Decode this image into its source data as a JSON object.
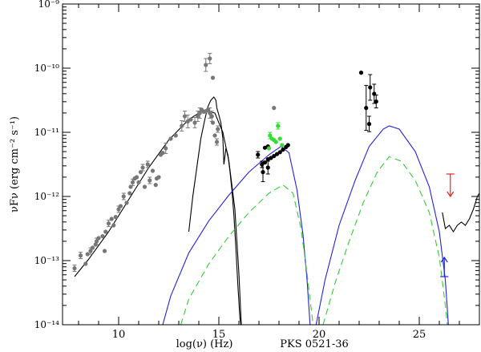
{
  "chart_data": {
    "type": "scatter",
    "title": "PKS 0521-36",
    "xlabel": "log(ν)  (Hz)",
    "ylabel": "νFν (erg cm⁻² s⁻¹)",
    "xlim": [
      7.2,
      28
    ],
    "ylim_log10": [
      -14,
      -9
    ],
    "xscale": "linear",
    "yscale": "log",
    "x_ticks": [
      10,
      15,
      20,
      25
    ],
    "x_tick_labels": [
      "10",
      "15",
      "20",
      "25"
    ],
    "y_ticks_log10": [
      -14,
      -13,
      -12,
      -11,
      -10,
      -9
    ],
    "y_tick_labels": [
      "10⁻¹⁴",
      "10⁻¹³",
      "10⁻¹²",
      "10⁻¹¹",
      "10⁻¹⁰",
      "10⁻⁹"
    ],
    "grid": false,
    "legend": "none",
    "colors": {
      "archival": "#777777",
      "xray_green": "#33dd33",
      "model_total": "#2222dd",
      "model_component": "#33cc33",
      "upper_limit": "#ee2222",
      "black": "#000000"
    },
    "series": [
      {
        "kind": "points",
        "color": "#777777",
        "points": [
          [
            7.8,
            -13.12,
            0.05
          ],
          [
            8.1,
            -12.92,
            0.05
          ],
          [
            8.35,
            -13.05,
            0
          ],
          [
            8.45,
            -12.9,
            0
          ],
          [
            8.6,
            -12.85,
            0.05
          ],
          [
            8.7,
            -12.8,
            0
          ],
          [
            8.85,
            -12.75,
            0
          ],
          [
            8.9,
            -12.7,
            0.05
          ],
          [
            9.0,
            -12.65,
            0
          ],
          [
            9.2,
            -12.62,
            0
          ],
          [
            9.3,
            -12.85,
            0
          ],
          [
            9.35,
            -12.55,
            0
          ],
          [
            9.5,
            -12.42,
            0.05
          ],
          [
            9.65,
            -12.35,
            0
          ],
          [
            9.75,
            -12.45,
            0
          ],
          [
            9.85,
            -12.32,
            0
          ],
          [
            10.0,
            -12.2,
            0.05
          ],
          [
            10.1,
            -12.15,
            0
          ],
          [
            10.25,
            -12.0,
            0.05
          ],
          [
            10.4,
            -12.1,
            0
          ],
          [
            10.55,
            -11.95,
            0
          ],
          [
            10.6,
            -11.85,
            0
          ],
          [
            10.7,
            -11.78,
            0.05
          ],
          [
            10.8,
            -11.72,
            0
          ],
          [
            10.9,
            -11.7,
            0
          ],
          [
            11.0,
            -11.78,
            0
          ],
          [
            11.1,
            -11.62,
            0
          ],
          [
            11.2,
            -11.55,
            0.05
          ],
          [
            11.3,
            -11.85,
            0
          ],
          [
            11.45,
            -11.5,
            0.05
          ],
          [
            11.55,
            -11.75,
            0.05
          ],
          [
            11.7,
            -11.6,
            0
          ],
          [
            11.85,
            -11.82,
            0
          ],
          [
            11.9,
            -11.72,
            0
          ],
          [
            12.0,
            -11.7,
            0
          ],
          [
            12.1,
            -11.35,
            0
          ],
          [
            12.2,
            -11.32,
            0
          ],
          [
            12.35,
            -11.25,
            0.08
          ],
          [
            12.6,
            -11.1,
            0
          ],
          [
            12.85,
            -11.05,
            0
          ],
          [
            13.15,
            -10.9,
            0.08
          ],
          [
            13.3,
            -10.75,
            0.08
          ],
          [
            13.45,
            -10.83,
            0.1
          ],
          [
            13.6,
            -10.8,
            0
          ],
          [
            13.8,
            -10.85,
            0.08
          ],
          [
            13.95,
            -10.75,
            0.08
          ],
          [
            14.05,
            -10.7,
            0.08
          ],
          [
            14.15,
            -10.65,
            0
          ],
          [
            14.25,
            -10.68,
            0
          ],
          [
            14.35,
            -10.67,
            0
          ],
          [
            14.45,
            -10.65,
            0
          ],
          [
            14.55,
            -10.7,
            0.08
          ],
          [
            14.65,
            -10.75,
            0.08
          ],
          [
            14.7,
            -10.85,
            0
          ],
          [
            14.8,
            -11.05,
            0
          ],
          [
            14.9,
            -11.15,
            0.05
          ],
          [
            14.95,
            -10.95,
            0.05
          ],
          [
            14.35,
            -9.95,
            0.1
          ],
          [
            14.55,
            -9.85,
            0.08
          ],
          [
            14.7,
            -10.15,
            0
          ]
        ]
      },
      {
        "kind": "points",
        "color": "#000000",
        "points": [
          [
            16.95,
            -11.35,
            0.05
          ],
          [
            17.15,
            -11.5,
            0.05
          ],
          [
            17.3,
            -11.47,
            0
          ],
          [
            17.45,
            -11.42,
            0
          ],
          [
            17.6,
            -11.4,
            0
          ],
          [
            17.75,
            -11.37,
            0
          ],
          [
            17.9,
            -11.34,
            0
          ],
          [
            18.05,
            -11.31,
            0
          ],
          [
            18.2,
            -11.27,
            0
          ],
          [
            18.35,
            -11.23,
            0
          ],
          [
            18.45,
            -11.2,
            0
          ],
          [
            17.2,
            -11.62,
            0.15
          ],
          [
            17.45,
            -11.55,
            0.1
          ],
          [
            17.3,
            -11.24,
            0
          ],
          [
            17.45,
            -11.22,
            0
          ],
          [
            22.1,
            -10.07,
            0
          ],
          [
            22.35,
            -10.62,
            0.35
          ],
          [
            22.55,
            -10.3,
            0.2
          ],
          [
            22.75,
            -10.4,
            0.15
          ],
          [
            22.5,
            -10.87,
            0.12
          ],
          [
            22.85,
            -10.52,
            0.1
          ]
        ]
      },
      {
        "kind": "points",
        "color": "#33dd33",
        "points": [
          [
            17.55,
            -11.05,
            0.05
          ],
          [
            17.65,
            -11.1,
            0
          ],
          [
            17.75,
            -11.12,
            0
          ],
          [
            17.85,
            -11.15,
            0
          ],
          [
            17.95,
            -10.9,
            0.05
          ],
          [
            18.05,
            -11.1,
            0
          ],
          [
            18.15,
            -11.2,
            0
          ],
          [
            17.5,
            -11.25,
            0
          ]
        ]
      },
      {
        "kind": "points",
        "color": "#777777",
        "points": [
          [
            17.75,
            -10.62,
            0
          ]
        ]
      }
    ],
    "curves": [
      {
        "kind": "model_total_synchrotron",
        "color": "#000000",
        "dash": "none",
        "points": [
          [
            7.8,
            -13.25
          ],
          [
            8.5,
            -12.98
          ],
          [
            9.5,
            -12.55
          ],
          [
            10.5,
            -12.05
          ],
          [
            11.5,
            -11.55
          ],
          [
            12.5,
            -11.12
          ],
          [
            13.5,
            -10.8
          ],
          [
            14.2,
            -10.66
          ],
          [
            14.8,
            -10.7
          ],
          [
            15.2,
            -11.0
          ],
          [
            15.5,
            -11.45
          ],
          [
            15.8,
            -12.2
          ],
          [
            16.0,
            -13.2
          ],
          [
            16.12,
            -14.0
          ]
        ]
      },
      {
        "kind": "model_component_blackbody",
        "color": "#000000",
        "dash": "none",
        "points": [
          [
            13.5,
            -12.55
          ],
          [
            13.7,
            -12.0
          ],
          [
            13.9,
            -11.55
          ],
          [
            14.1,
            -11.1
          ],
          [
            14.3,
            -10.8
          ],
          [
            14.45,
            -10.6
          ],
          [
            14.6,
            -10.5
          ],
          [
            14.75,
            -10.45
          ],
          [
            14.85,
            -10.5
          ],
          [
            14.9,
            -10.62
          ],
          [
            15.0,
            -10.73
          ],
          [
            15.1,
            -10.85
          ],
          [
            15.2,
            -11.1
          ],
          [
            15.25,
            -11.5
          ],
          [
            15.35,
            -11.25
          ],
          [
            15.45,
            -11.35
          ],
          [
            15.55,
            -11.6
          ],
          [
            15.65,
            -11.9
          ],
          [
            15.75,
            -12.3
          ],
          [
            15.85,
            -12.8
          ],
          [
            15.95,
            -13.4
          ],
          [
            16.05,
            -13.9
          ],
          [
            16.1,
            -14.0
          ]
        ]
      },
      {
        "kind": "model_total_high_energy",
        "color": "#2222dd",
        "dash": "none",
        "points": [
          [
            12.2,
            -14.0
          ],
          [
            12.6,
            -13.55
          ],
          [
            13.5,
            -12.88
          ],
          [
            14.5,
            -12.38
          ],
          [
            15.5,
            -11.98
          ],
          [
            16.5,
            -11.62
          ],
          [
            17.5,
            -11.35
          ],
          [
            18.1,
            -11.22
          ],
          [
            18.5,
            -11.32
          ],
          [
            18.9,
            -11.9
          ],
          [
            19.2,
            -12.6
          ],
          [
            19.4,
            -13.3
          ],
          [
            19.55,
            -14.0
          ]
        ]
      },
      {
        "kind": "model_component_green",
        "color": "#33cc33",
        "dash": "8,5",
        "points": [
          [
            13.1,
            -14.0
          ],
          [
            13.5,
            -13.6
          ],
          [
            14.5,
            -13.05
          ],
          [
            15.5,
            -12.62
          ],
          [
            16.5,
            -12.25
          ],
          [
            17.5,
            -11.95
          ],
          [
            18.2,
            -11.82
          ],
          [
            18.7,
            -11.95
          ],
          [
            19.1,
            -12.5
          ],
          [
            19.4,
            -13.2
          ],
          [
            19.7,
            -14.0
          ]
        ]
      },
      {
        "kind": "model_total_ic",
        "color": "#2222dd",
        "dash": "none",
        "points": [
          [
            19.85,
            -14.0
          ],
          [
            20.3,
            -13.3
          ],
          [
            21.0,
            -12.45
          ],
          [
            21.8,
            -11.75
          ],
          [
            22.5,
            -11.22
          ],
          [
            23.2,
            -10.95
          ],
          [
            23.5,
            -10.9
          ],
          [
            24.0,
            -10.95
          ],
          [
            24.8,
            -11.3
          ],
          [
            25.5,
            -11.85
          ],
          [
            26.0,
            -12.55
          ],
          [
            26.3,
            -13.3
          ],
          [
            26.45,
            -14.0
          ]
        ]
      },
      {
        "kind": "model_component_green_ic",
        "color": "#33cc33",
        "dash": "8,5",
        "points": [
          [
            20.2,
            -14.0
          ],
          [
            20.8,
            -13.35
          ],
          [
            21.5,
            -12.7
          ],
          [
            22.2,
            -12.1
          ],
          [
            22.9,
            -11.62
          ],
          [
            23.5,
            -11.38
          ],
          [
            24.1,
            -11.45
          ],
          [
            24.8,
            -11.75
          ],
          [
            25.5,
            -12.25
          ],
          [
            26.0,
            -12.95
          ],
          [
            26.3,
            -13.7
          ],
          [
            26.4,
            -14.0
          ]
        ]
      },
      {
        "kind": "sensitivity",
        "color": "#000000",
        "dash": "none",
        "points": [
          [
            26.15,
            -12.25
          ],
          [
            26.3,
            -12.5
          ],
          [
            26.5,
            -12.45
          ],
          [
            26.7,
            -12.55
          ],
          [
            26.9,
            -12.45
          ],
          [
            27.1,
            -12.4
          ],
          [
            27.3,
            -12.45
          ],
          [
            27.5,
            -12.35
          ],
          [
            27.7,
            -12.2
          ],
          [
            27.9,
            -12.0
          ],
          [
            28.0,
            -11.95
          ]
        ]
      }
    ],
    "upper_limits": [
      {
        "x": 26.55,
        "y_log10": -11.65,
        "color": "#ee2222"
      }
    ],
    "lower_limits": [
      {
        "x": 26.25,
        "y_log10": -13.25,
        "color": "#2222dd"
      }
    ]
  }
}
